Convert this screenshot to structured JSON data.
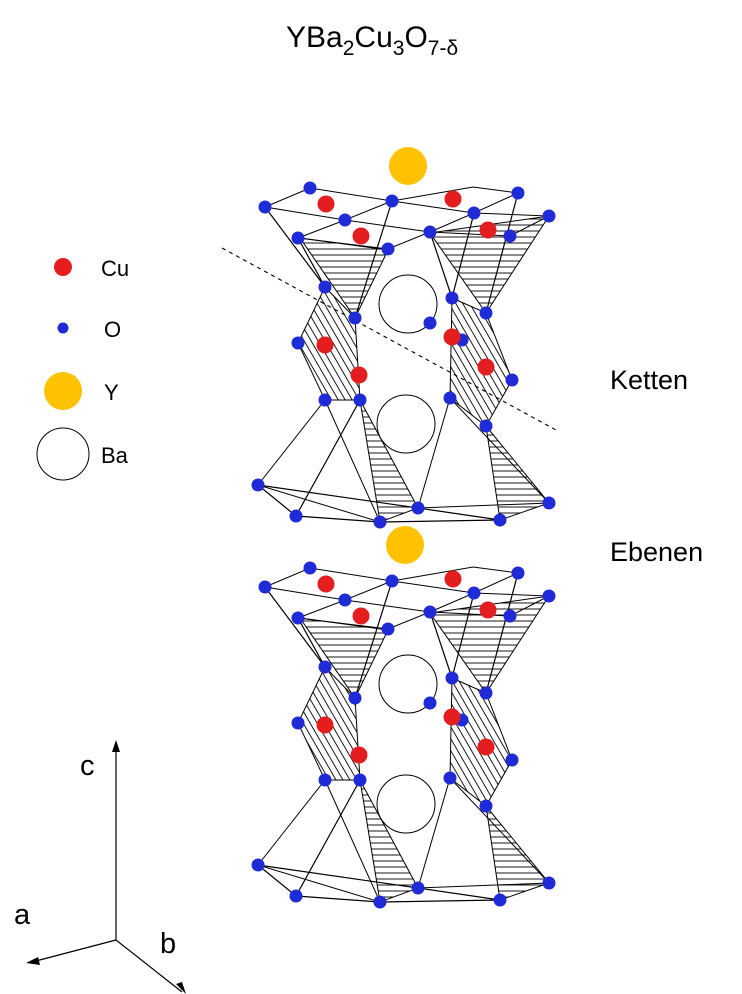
{
  "formula": {
    "base": "YBa",
    "sub1": "2",
    "mid": "Cu",
    "sub2": "3",
    "end": "O",
    "sub3": "7-δ"
  },
  "legend": [
    {
      "label": "Cu",
      "color": "#e41e1e",
      "icon": "cu-atom-icon"
    },
    {
      "label": "O",
      "color": "#1f2bd6",
      "icon": "o-atom-icon"
    },
    {
      "label": "Y",
      "color": "#ffc200",
      "icon": "y-atom-icon"
    },
    {
      "label": "Ba",
      "color": "#ffffff",
      "icon": "ba-atom-icon"
    }
  ],
  "labels": {
    "chains": "Ketten",
    "planes": "Ebenen"
  },
  "axes": {
    "a": "a",
    "b": "b",
    "c": "c"
  }
}
